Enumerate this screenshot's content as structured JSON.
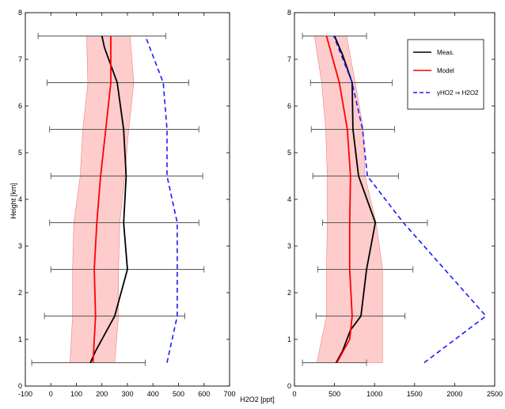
{
  "chart_data": [
    {
      "type": "line",
      "xlabel": "H2O2 [ppt]",
      "ylabel": "Height [km]",
      "xlim": [
        -100,
        700
      ],
      "ylim": [
        0,
        8
      ],
      "xticks": [
        -100,
        0,
        100,
        200,
        300,
        400,
        500,
        600,
        700
      ],
      "yticks": [
        0,
        1,
        2,
        3,
        4,
        5,
        6,
        7,
        8
      ],
      "grid": false,
      "series": [
        {
          "name": "Meas.",
          "color": "#000000",
          "style": "solid",
          "points": [
            [
              155,
              0.5
            ],
            [
              175,
              0.75
            ],
            [
              200,
              1.0
            ],
            [
              225,
              1.25
            ],
            [
              250,
              1.5
            ],
            [
              300,
              2.5
            ],
            [
              285,
              3.5
            ],
            [
              295,
              4.5
            ],
            [
              285,
              5.5
            ],
            [
              260,
              6.5
            ],
            [
              210,
              7.25
            ],
            [
              200,
              7.5
            ]
          ]
        },
        {
          "name": "Model",
          "color": "#ff0000",
          "style": "solid",
          "points": [
            [
              165,
              0.5
            ],
            [
              170,
              1.0
            ],
            [
              175,
              1.5
            ],
            [
              170,
              2.5
            ],
            [
              180,
              3.5
            ],
            [
              195,
              4.5
            ],
            [
              215,
              5.5
            ],
            [
              235,
              6.5
            ],
            [
              235,
              7.5
            ]
          ]
        },
        {
          "name": "",
          "color": "#1a1aff",
          "style": "dashed",
          "points": [
            [
              455,
              0.5
            ],
            [
              495,
              1.5
            ],
            [
              495,
              2.5
            ],
            [
              495,
              3.5
            ],
            [
              455,
              4.5
            ],
            [
              455,
              5.5
            ],
            [
              440,
              6.5
            ],
            [
              370,
              7.5
            ]
          ]
        }
      ],
      "model_band": {
        "color": "#ff9999",
        "lower": [
          [
            75,
            0.5
          ],
          [
            85,
            1.5
          ],
          [
            85,
            2.5
          ],
          [
            90,
            3.5
          ],
          [
            115,
            4.5
          ],
          [
            125,
            5.5
          ],
          [
            145,
            6.5
          ],
          [
            140,
            7.5
          ]
        ],
        "upper": [
          [
            250,
            0.5
          ],
          [
            265,
            1.5
          ],
          [
            265,
            2.5
          ],
          [
            270,
            3.5
          ],
          [
            290,
            4.5
          ],
          [
            305,
            5.5
          ],
          [
            325,
            6.5
          ],
          [
            310,
            7.5
          ]
        ]
      },
      "error_bars": [
        {
          "y": 0.5,
          "low": -75,
          "high": 370
        },
        {
          "y": 1.5,
          "low": -25,
          "high": 525
        },
        {
          "y": 2.5,
          "low": 0,
          "high": 600
        },
        {
          "y": 3.5,
          "low": -5,
          "high": 580
        },
        {
          "y": 4.5,
          "low": 0,
          "high": 595
        },
        {
          "y": 5.5,
          "low": -5,
          "high": 580
        },
        {
          "y": 6.5,
          "low": -15,
          "high": 540
        },
        {
          "y": 7.5,
          "low": -50,
          "high": 450
        }
      ]
    },
    {
      "type": "line",
      "xlabel": "",
      "ylabel": "",
      "xlim": [
        0,
        2500
      ],
      "ylim": [
        0,
        8
      ],
      "xticks": [
        0,
        500,
        1000,
        1500,
        2000,
        2500
      ],
      "yticks": [
        0,
        1,
        2,
        3,
        4,
        5,
        6,
        7,
        8
      ],
      "grid": false,
      "legend_position": "top-right",
      "series": [
        {
          "name": "Meas.",
          "color": "#000000",
          "style": "solid",
          "points": [
            [
              520,
              0.5
            ],
            [
              600,
              0.75
            ],
            [
              700,
              1.2
            ],
            [
              830,
              1.5
            ],
            [
              900,
              2.5
            ],
            [
              1010,
              3.5
            ],
            [
              800,
              4.5
            ],
            [
              730,
              5.5
            ],
            [
              720,
              6.5
            ],
            [
              600,
              7.1
            ],
            [
              500,
              7.5
            ]
          ]
        },
        {
          "name": "Model",
          "color": "#ff0000",
          "style": "solid",
          "points": [
            [
              530,
              0.5
            ],
            [
              690,
              1.0
            ],
            [
              720,
              1.5
            ],
            [
              690,
              2.5
            ],
            [
              690,
              3.5
            ],
            [
              700,
              4.5
            ],
            [
              660,
              5.5
            ],
            [
              560,
              6.5
            ],
            [
              400,
              7.5
            ]
          ]
        },
        {
          "name": "",
          "color": "#1a1aff",
          "style": "dashed",
          "points": [
            [
              1620,
              0.5
            ],
            [
              2390,
              1.5
            ],
            [
              1360,
              3.5
            ],
            [
              910,
              4.5
            ],
            [
              850,
              5.5
            ],
            [
              720,
              6.5
            ],
            [
              490,
              7.5
            ]
          ]
        }
      ],
      "model_band": {
        "color": "#ff9999",
        "lower": [
          [
            280,
            0.5
          ],
          [
            400,
            1.5
          ],
          [
            400,
            2.5
          ],
          [
            410,
            3.5
          ],
          [
            410,
            4.5
          ],
          [
            390,
            5.5
          ],
          [
            340,
            6.5
          ],
          [
            250,
            7.5
          ]
        ],
        "upper": [
          [
            1100,
            0.5
          ],
          [
            1100,
            1.5
          ],
          [
            1100,
            2.5
          ],
          [
            1020,
            3.5
          ],
          [
            880,
            4.5
          ],
          [
            860,
            5.5
          ],
          [
            760,
            6.5
          ],
          [
            650,
            7.5
          ]
        ]
      },
      "error_bars": [
        {
          "y": 0.5,
          "low": 100,
          "high": 900
        },
        {
          "y": 1.5,
          "low": 270,
          "high": 1380
        },
        {
          "y": 2.5,
          "low": 290,
          "high": 1480
        },
        {
          "y": 3.5,
          "low": 350,
          "high": 1660
        },
        {
          "y": 4.5,
          "low": 230,
          "high": 1300
        },
        {
          "y": 5.5,
          "low": 210,
          "high": 1250
        },
        {
          "y": 6.5,
          "low": 200,
          "high": 1220
        },
        {
          "y": 7.5,
          "low": 100,
          "high": 900
        }
      ],
      "legend": [
        {
          "label": "Meas.",
          "color": "#000000",
          "style": "solid"
        },
        {
          "label": "Model",
          "color": "#ff0000",
          "style": "solid"
        },
        {
          "label": "γHO2 ⇒ H2O2",
          "color": "#1a1aff",
          "style": "dashed"
        }
      ]
    }
  ]
}
